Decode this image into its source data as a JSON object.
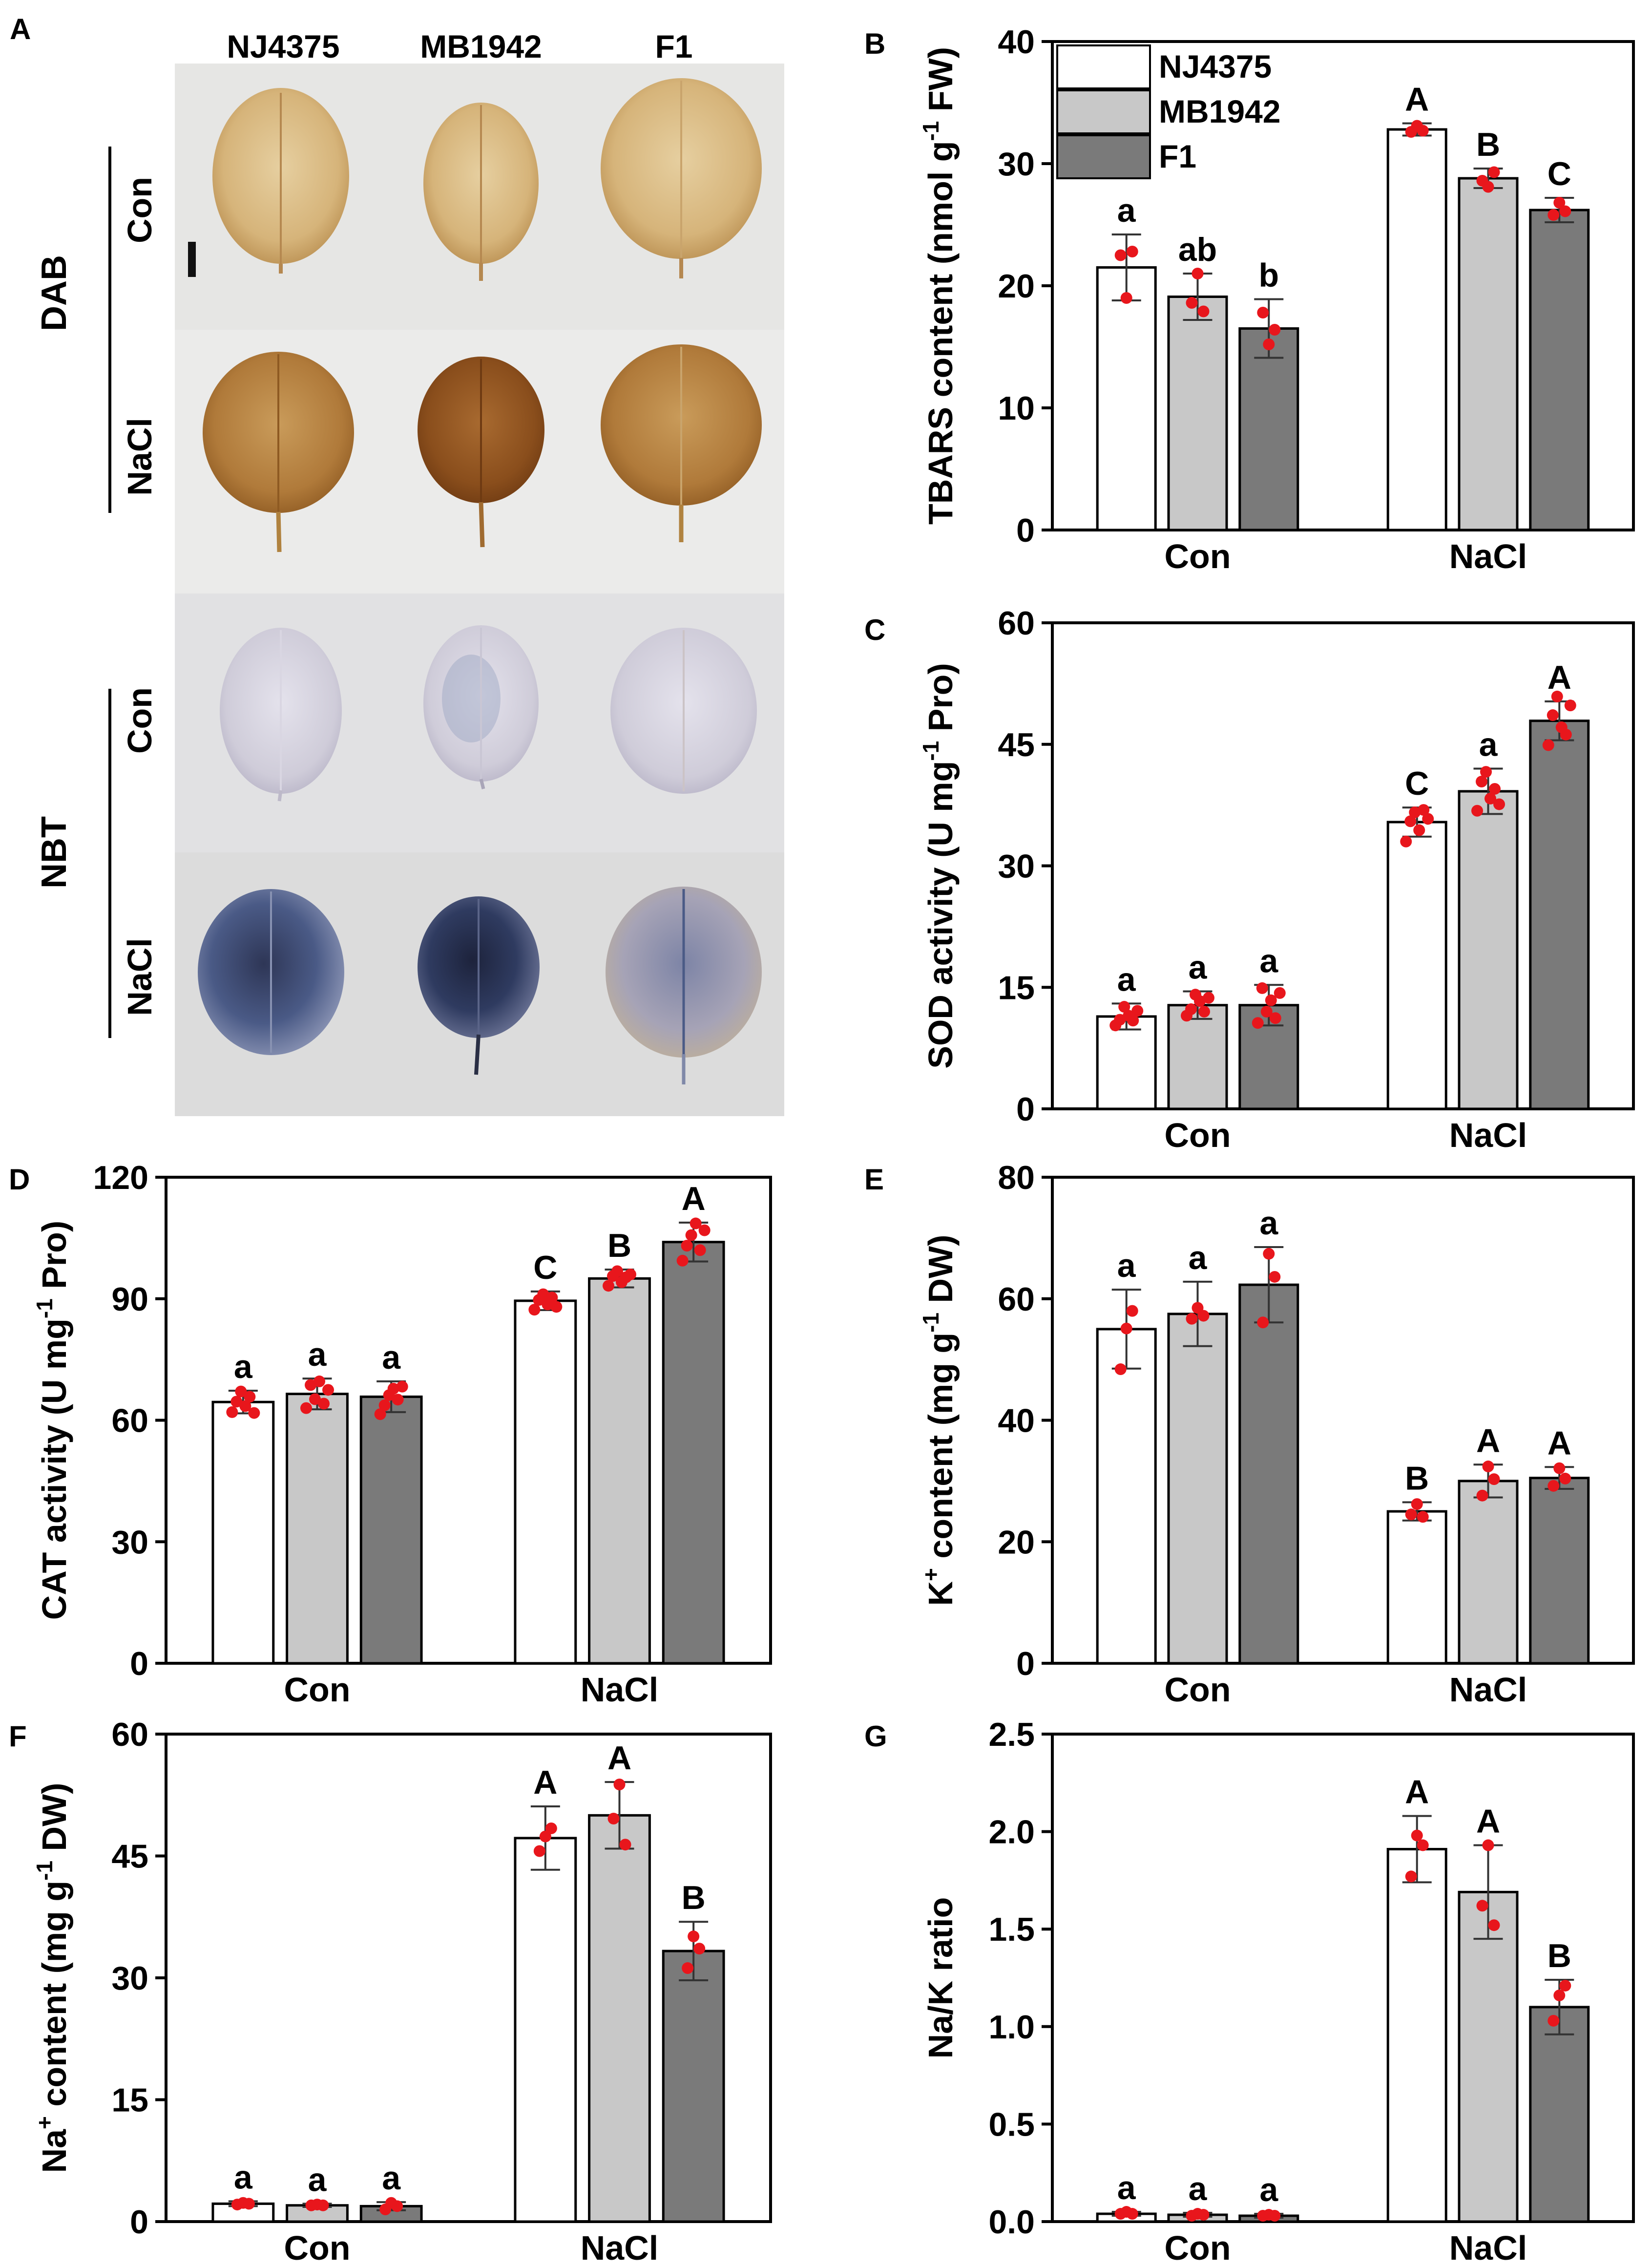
{
  "photo_panel": {
    "label": "A",
    "genotypes": [
      "NJ4375",
      "MB1942",
      "F1"
    ],
    "stains": [
      {
        "name": "DAB",
        "treatments": [
          "Con",
          "NaCl"
        ]
      },
      {
        "name": "NBT",
        "treatments": [
          "Con",
          "NaCl"
        ]
      }
    ]
  },
  "legend": {
    "entries": [
      "NJ4375",
      "MB1942",
      "F1"
    ],
    "fills": [
      "#ffffff",
      "#c8c8c8",
      "#7a7a7a"
    ]
  },
  "colors": {
    "bar_edge": "#000000",
    "points": "#e8161c"
  },
  "chart_data": [
    {
      "panel": "B",
      "type": "bar",
      "ylabel_parts": [
        "TBARS content (nmol g",
        "-1",
        " FW)"
      ],
      "categories": [
        "Con",
        "NaCl"
      ],
      "ylim": [
        0,
        40
      ],
      "yticks": [
        0,
        10,
        20,
        30,
        40
      ],
      "legend": true,
      "series": [
        {
          "name": "NJ4375",
          "values": [
            21.5,
            32.8
          ],
          "errors": [
            2.7,
            0.5
          ],
          "letters": [
            "a",
            "A"
          ],
          "points": [
            [
              22.5,
              19,
              22.8
            ],
            [
              32.6,
              33.1,
              32.7
            ]
          ]
        },
        {
          "name": "MB1942",
          "values": [
            19.1,
            28.8
          ],
          "errors": [
            1.9,
            0.8
          ],
          "letters": [
            "ab",
            "B"
          ],
          "points": [
            [
              18.6,
              21.0,
              17.9
            ],
            [
              28.6,
              28.1,
              29.3
            ]
          ]
        },
        {
          "name": "F1",
          "values": [
            16.5,
            26.2
          ],
          "errors": [
            2.4,
            1.0
          ],
          "letters": [
            "b",
            "C"
          ],
          "points": [
            [
              17.8,
              15.2,
              16.4
            ],
            [
              25.8,
              26.8,
              26.1
            ]
          ]
        }
      ]
    },
    {
      "panel": "C",
      "type": "bar",
      "ylabel_parts": [
        "SOD activity (U mg",
        "-1",
        " Pro)"
      ],
      "categories": [
        "Con",
        "NaCl"
      ],
      "ylim": [
        0,
        60
      ],
      "yticks": [
        0,
        15,
        30,
        45,
        60
      ],
      "series": [
        {
          "name": "NJ4375",
          "values": [
            11.4,
            35.4
          ],
          "errors": [
            1.6,
            1.8
          ],
          "letters": [
            "a",
            "C"
          ],
          "points": [
            [
              10.3,
              11.0,
              12.6,
              11.5,
              10.9,
              12.1
            ],
            [
              33.0,
              35.5,
              36.6,
              34.4,
              36.9,
              35.8
            ]
          ]
        },
        {
          "name": "MB1942",
          "values": [
            12.8,
            39.2
          ],
          "errors": [
            1.7,
            2.8
          ],
          "letters": [
            "a",
            "a"
          ],
          "points": [
            [
              11.5,
              12.3,
              14.1,
              13.3,
              12.0,
              13.7
            ],
            [
              36.8,
              40.4,
              41.6,
              38.3,
              39.5,
              37.6
            ]
          ]
        },
        {
          "name": "F1",
          "values": [
            12.8,
            47.9
          ],
          "errors": [
            2.5,
            2.4
          ],
          "letters": [
            "a",
            "A"
          ],
          "points": [
            [
              10.6,
              14.9,
              12.0,
              13.4,
              11.2,
              14.3
            ],
            [
              44.9,
              48.6,
              50.9,
              47.1,
              46.2,
              49.8
            ]
          ]
        }
      ]
    },
    {
      "panel": "D",
      "type": "bar",
      "ylabel_parts": [
        "CAT activity (U mg",
        "-1",
        " Pro)"
      ],
      "categories": [
        "Con",
        "NaCl"
      ],
      "ylim": [
        0,
        120
      ],
      "yticks": [
        0,
        30,
        60,
        90,
        120
      ],
      "series": [
        {
          "name": "NJ4375",
          "values": [
            64.5,
            89.5
          ],
          "errors": [
            2.8,
            2.3
          ],
          "letters": [
            "a",
            "C"
          ],
          "points": [
            [
              62.0,
              64.6,
              67.1,
              63.5,
              65.8,
              61.8
            ],
            [
              87.3,
              89.7,
              91.1,
              88.6,
              90.3,
              88.0
            ]
          ]
        },
        {
          "name": "MB1942",
          "values": [
            66.5,
            95.0
          ],
          "errors": [
            3.8,
            2.2
          ],
          "letters": [
            "a",
            "B"
          ],
          "points": [
            [
              63.0,
              68.7,
              65.2,
              69.6,
              64.1,
              67.5
            ],
            [
              93.2,
              95.6,
              96.8,
              94.1,
              95.3,
              96.0
            ]
          ]
        },
        {
          "name": "F1",
          "values": [
            65.8,
            104.0
          ],
          "errors": [
            3.8,
            4.8
          ],
          "letters": [
            "a",
            "A"
          ],
          "points": [
            [
              61.5,
              63.7,
              66.2,
              67.8,
              65.1,
              68.3
            ],
            [
              99.4,
              103.1,
              105.7,
              108.6,
              102.0,
              106.9
            ]
          ]
        }
      ]
    },
    {
      "panel": "E",
      "type": "bar",
      "ylabel_parts": [
        "K",
        "+",
        " content (mg g",
        "-1",
        " DW)"
      ],
      "categories": [
        "Con",
        "NaCl"
      ],
      "ylim": [
        0,
        80
      ],
      "yticks": [
        0,
        20,
        40,
        60,
        80
      ],
      "series": [
        {
          "name": "NJ4375",
          "values": [
            55.0,
            25.0
          ],
          "errors": [
            6.5,
            1.5
          ],
          "letters": [
            "a",
            "B"
          ],
          "points": [
            [
              48.4,
              55.1,
              58.0
            ],
            [
              24.5,
              26.2,
              24.1
            ]
          ]
        },
        {
          "name": "MB1942",
          "values": [
            57.5,
            30.0
          ],
          "errors": [
            5.3,
            2.7
          ],
          "letters": [
            "a",
            "A"
          ],
          "points": [
            [
              56.7,
              58.5,
              57.2
            ],
            [
              27.6,
              32.4,
              30.3
            ]
          ]
        },
        {
          "name": "F1",
          "values": [
            62.3,
            30.5
          ],
          "errors": [
            6.2,
            1.8
          ],
          "letters": [
            "a",
            "A"
          ],
          "points": [
            [
              56.1,
              67.4,
              63.6
            ],
            [
              29.2,
              32.1,
              30.4
            ]
          ]
        }
      ]
    },
    {
      "panel": "F",
      "type": "bar",
      "ylabel_parts": [
        "Na",
        "+",
        " content (mg g",
        "-1",
        " DW)"
      ],
      "categories": [
        "Con",
        "NaCl"
      ],
      "ylim": [
        0,
        60
      ],
      "yticks": [
        0,
        15,
        30,
        45,
        60
      ],
      "series": [
        {
          "name": "NJ4375",
          "values": [
            2.2,
            47.2
          ],
          "errors": [
            0.3,
            3.9
          ],
          "letters": [
            "a",
            "A"
          ],
          "points": [
            [
              2.1,
              2.3,
              2.2
            ],
            [
              45.6,
              47.4,
              48.4
            ]
          ]
        },
        {
          "name": "MB1942",
          "values": [
            2.0,
            50.0
          ],
          "errors": [
            0.2,
            4.1
          ],
          "letters": [
            "a",
            "A"
          ],
          "points": [
            [
              2.0,
              2.1,
              2.0
            ],
            [
              49.6,
              53.8,
              46.4
            ]
          ]
        },
        {
          "name": "F1",
          "values": [
            1.9,
            33.3
          ],
          "errors": [
            0.5,
            3.6
          ],
          "letters": [
            "a",
            "B"
          ],
          "points": [
            [
              1.5,
              2.3,
              1.9
            ],
            [
              31.2,
              35.1,
              33.6
            ]
          ]
        }
      ]
    },
    {
      "panel": "G",
      "type": "bar",
      "ylabel_parts": [
        "Na/K ratio"
      ],
      "categories": [
        "Con",
        "NaCl"
      ],
      "ylim": [
        0,
        2.5
      ],
      "yticks": [
        0,
        0.5,
        1.0,
        1.5,
        2.0,
        2.5
      ],
      "ytick_decimals": 1,
      "series": [
        {
          "name": "NJ4375",
          "values": [
            0.04,
            1.91
          ],
          "errors": [
            0.01,
            0.17
          ],
          "letters": [
            "a",
            "A"
          ],
          "points": [
            [
              0.04,
              0.05,
              0.04
            ],
            [
              1.77,
              1.98,
              1.93
            ]
          ]
        },
        {
          "name": "MB1942",
          "values": [
            0.035,
            1.69
          ],
          "errors": [
            0.01,
            0.24
          ],
          "letters": [
            "a",
            "A"
          ],
          "points": [
            [
              0.03,
              0.04,
              0.035
            ],
            [
              1.62,
              1.93,
              1.52
            ]
          ]
        },
        {
          "name": "F1",
          "values": [
            0.03,
            1.1
          ],
          "errors": [
            0.01,
            0.14
          ],
          "letters": [
            "a",
            "B"
          ],
          "points": [
            [
              0.03,
              0.035,
              0.03
            ],
            [
              1.03,
              1.16,
              1.21
            ]
          ]
        }
      ]
    }
  ]
}
